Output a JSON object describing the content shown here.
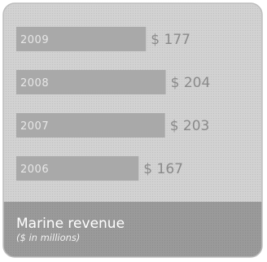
{
  "chart_data": {
    "type": "bar",
    "orientation": "horizontal",
    "title": "Marine revenue",
    "subtitle": "($ in millions)",
    "categories": [
      "2009",
      "2008",
      "2007",
      "2006"
    ],
    "values": [
      177,
      204,
      203,
      167
    ],
    "value_labels": [
      "$ 177",
      "$ 204",
      "$ 203",
      "$ 167"
    ],
    "grid": false,
    "legend": "none"
  },
  "colors": {
    "background": "#ffffff",
    "panel": "#d2d2d2",
    "panel_border": "#bdbdbd",
    "bar": "#a9a9a9",
    "footer": "#9a9a9a",
    "value_text": "#8a8a8a"
  }
}
